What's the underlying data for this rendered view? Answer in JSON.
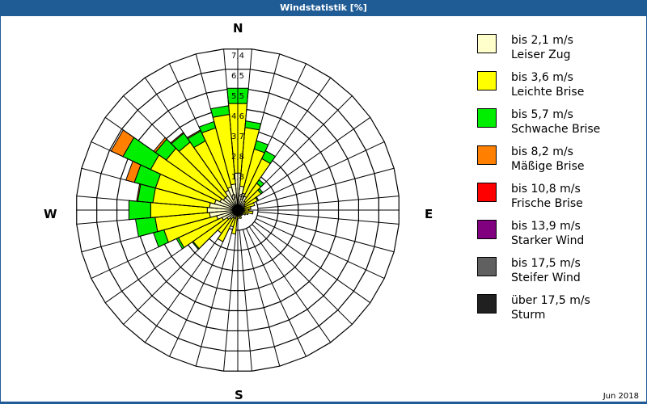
{
  "title": "Windstatistik [%]",
  "date_label": "Jun 2018",
  "compass": {
    "n": "N",
    "e": "E",
    "s": "S",
    "w": "W"
  },
  "legend": [
    {
      "speed": "bis 2,1 m/s",
      "name": "Leiser Zug",
      "color": "#ffffcc"
    },
    {
      "speed": "bis 3,6 m/s",
      "name": "Leichte Brise",
      "color": "#ffff00"
    },
    {
      "speed": "bis 5,7 m/s",
      "name": "Schwache Brise",
      "color": "#00ee00"
    },
    {
      "speed": "bis 8,2 m/s",
      "name": "Mäßige Brise",
      "color": "#ff8000"
    },
    {
      "speed": "bis 10,8 m/s",
      "name": "Frische Brise",
      "color": "#ff0000"
    },
    {
      "speed": "bis 13,9 m/s",
      "name": "Starker Wind",
      "color": "#800080"
    },
    {
      "speed": "bis 17,5 m/s",
      "name": "Steifer Wind",
      "color": "#606060"
    },
    {
      "speed": "über 17,5 m/s",
      "name": "Sturm",
      "color": "#202020"
    }
  ],
  "chart_data": {
    "type": "wind-rose",
    "title": "Windstatistik [%]",
    "ring_labels": [
      "0,9",
      "1,8",
      "2,8",
      "3,7",
      "4,6",
      "5,5",
      "6,5",
      "7,4"
    ],
    "rmax_percent": 7.4,
    "sector_width_deg": 10,
    "series_names": [
      "Leiser Zug",
      "Leichte Brise",
      "Schwache Brise",
      "Mäßige Brise",
      "Frische Brise"
    ],
    "sectors_cumulative_percent": [
      {
        "dir": 0,
        "values": [
          1.7,
          4.9,
          5.6
        ]
      },
      {
        "dir": 10,
        "values": [
          1.1,
          3.8,
          4.1
        ]
      },
      {
        "dir": 20,
        "values": [
          0.8,
          2.9,
          3.3
        ]
      },
      {
        "dir": 30,
        "values": [
          0.7,
          2.6,
          3.0
        ]
      },
      {
        "dir": 40,
        "values": [
          0.5,
          1.5,
          1.7
        ]
      },
      {
        "dir": 50,
        "values": [
          0.4,
          1.3,
          1.4
        ]
      },
      {
        "dir": 60,
        "values": [
          0.35,
          1.0,
          1.05
        ]
      },
      {
        "dir": 70,
        "values": [
          0.3,
          0.8
        ]
      },
      {
        "dir": 80,
        "values": [
          0.3,
          0.6
        ]
      },
      {
        "dir": 90,
        "values": [
          0.3,
          0.5
        ]
      },
      {
        "dir": 100,
        "values": [
          0.3,
          0.7
        ]
      },
      {
        "dir": 110,
        "values": [
          0.25,
          0.5
        ]
      },
      {
        "dir": 120,
        "values": [
          0.2,
          0.4
        ]
      },
      {
        "dir": 130,
        "values": [
          0.2,
          0.3
        ]
      },
      {
        "dir": 140,
        "values": [
          0.2,
          0.3
        ]
      },
      {
        "dir": 150,
        "values": [
          0.2,
          0.3
        ]
      },
      {
        "dir": 160,
        "values": [
          0.2,
          0.4
        ]
      },
      {
        "dir": 170,
        "values": [
          0.2,
          0.3
        ]
      },
      {
        "dir": 180,
        "values": [
          0.2,
          0.4
        ]
      },
      {
        "dir": 190,
        "values": [
          0.3,
          1.1
        ]
      },
      {
        "dir": 200,
        "values": [
          0.4,
          0.8
        ]
      },
      {
        "dir": 210,
        "values": [
          0.4,
          1.6
        ]
      },
      {
        "dir": 220,
        "values": [
          0.5,
          1.3
        ]
      },
      {
        "dir": 230,
        "values": [
          0.6,
          2.5,
          2.55
        ]
      },
      {
        "dir": 240,
        "values": [
          0.8,
          3.0,
          3.1
        ]
      },
      {
        "dir": 250,
        "values": [
          1.0,
          3.5,
          4.0
        ]
      },
      {
        "dir": 260,
        "values": [
          1.3,
          3.8,
          4.7
        ]
      },
      {
        "dir": 270,
        "values": [
          1.4,
          4.0,
          5.0
        ]
      },
      {
        "dir": 280,
        "values": [
          1.3,
          3.9,
          4.6,
          4.65
        ]
      },
      {
        "dir": 290,
        "values": [
          1.1,
          3.9,
          4.9,
          5.3
        ]
      },
      {
        "dir": 300,
        "values": [
          0.9,
          4.4,
          5.8,
          6.4
        ]
      },
      {
        "dir": 310,
        "values": [
          0.8,
          4.0,
          4.6,
          4.7
        ]
      },
      {
        "dir": 320,
        "values": [
          0.8,
          3.8,
          4.3,
          4.35
        ]
      },
      {
        "dir": 330,
        "values": [
          1.0,
          3.5,
          4.0,
          4.05
        ]
      },
      {
        "dir": 340,
        "values": [
          1.1,
          3.9,
          4.2
        ]
      },
      {
        "dir": 350,
        "values": [
          1.2,
          4.4,
          4.8
        ]
      }
    ]
  }
}
